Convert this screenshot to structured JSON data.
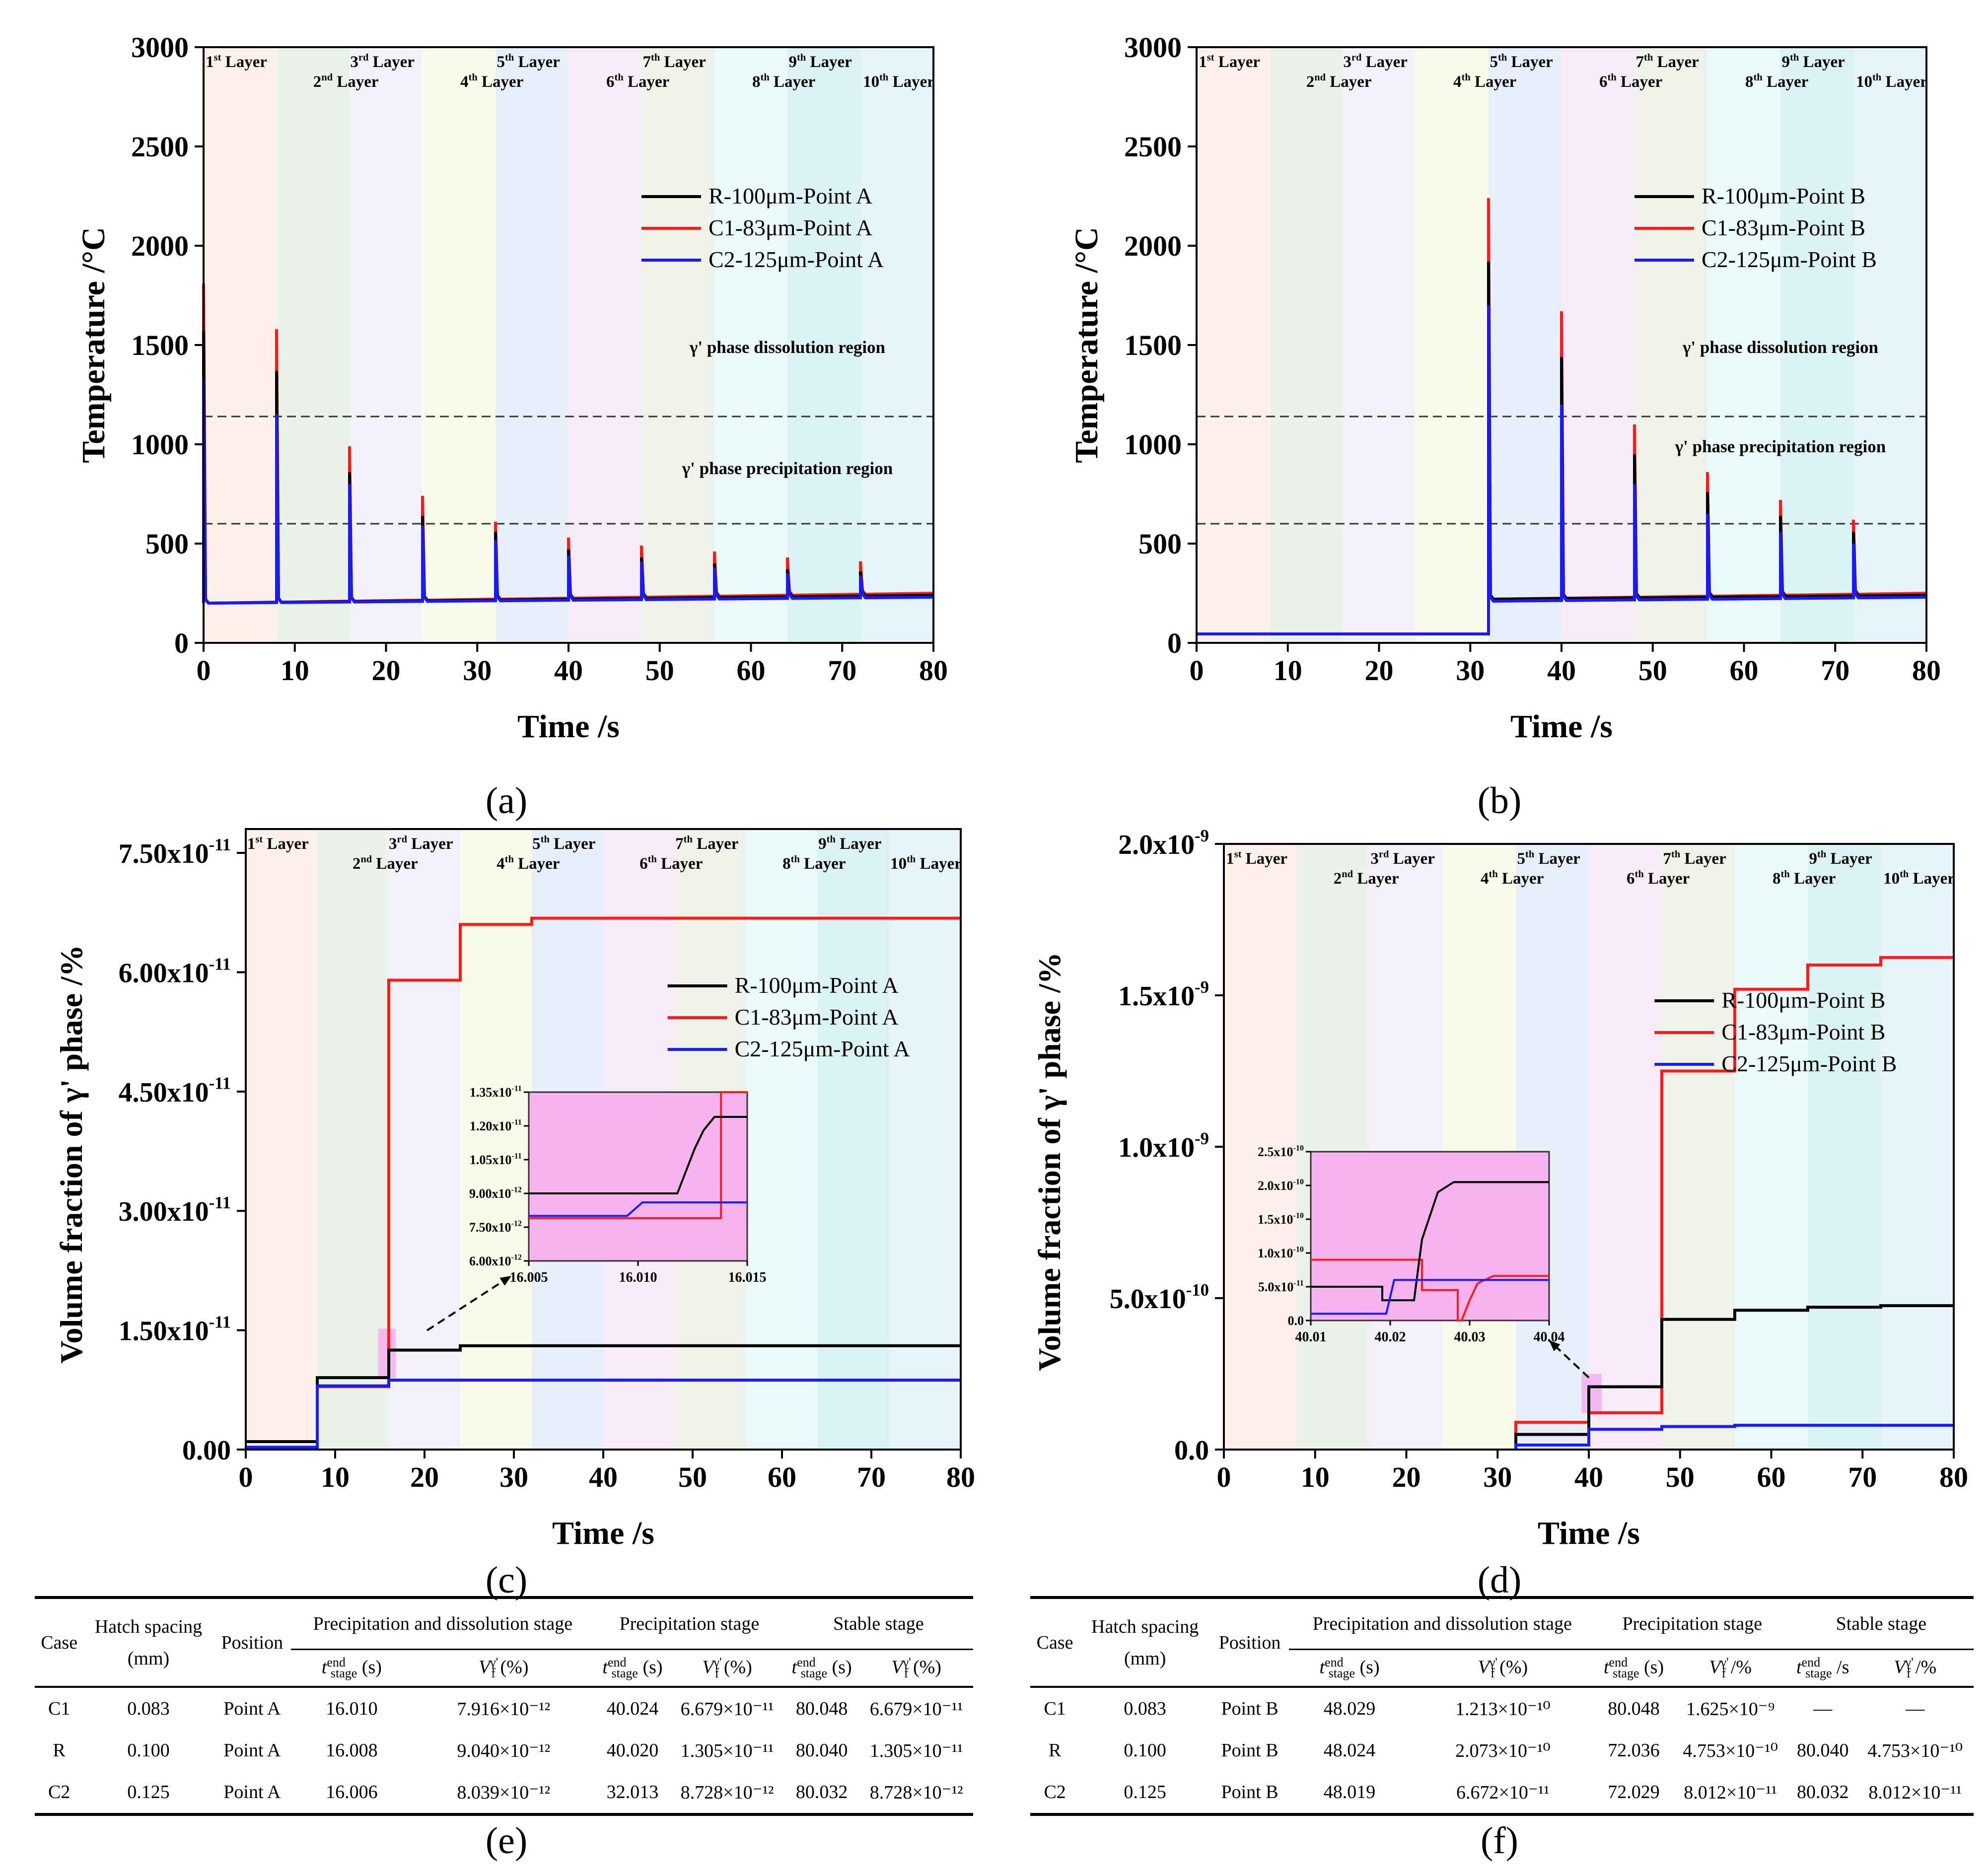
{
  "layers": [
    "1st Layer",
    "2nd Layer",
    "3rd Layer",
    "4th Layer",
    "5th Layer",
    "6th Layer",
    "7th Layer",
    "8th Layer",
    "9th Layer",
    "10th Layer"
  ],
  "layer_colors": [
    "#fdf1ea",
    "#eaf2ea",
    "#f4f1fb",
    "#fbfbea",
    "#e7f0fa",
    "#f8ecf8",
    "#eef2e9",
    "#eafaf9",
    "#dcf3f5",
    "#e6f5fb"
  ],
  "series_colors": {
    "R": "#000000",
    "C1": "#ff1a1a",
    "C2": "#1a1aff"
  },
  "captions": [
    "(a)",
    "(b)",
    "(c)",
    "(d)",
    "(e)",
    "(f)"
  ],
  "chart_data": [
    {
      "id": "a",
      "type": "line",
      "xlabel": "Time /s",
      "ylabel": "Temperature /°C",
      "xlim": [
        0,
        80
      ],
      "ylim": [
        0,
        3000
      ],
      "xticks": [
        "0",
        "10",
        "20",
        "30",
        "40",
        "50",
        "60",
        "70",
        "80"
      ],
      "yticks": [
        "0",
        "500",
        "1000",
        "1500",
        "2000",
        "2500",
        "3000"
      ],
      "legend": [
        "R-100μm-Point A",
        "C1-83μm-Point A",
        "C2-125μm-Point A"
      ],
      "annotations": [
        "γ' phase dissolution region",
        "γ' phase precipitation region"
      ],
      "reference_lines": [
        1140,
        600
      ],
      "peak_times": [
        0,
        8,
        16,
        24,
        32,
        40,
        48,
        56,
        64,
        72
      ],
      "series": [
        {
          "name": "R-100μm-Point A",
          "peaks": [
            1570,
            1370,
            860,
            640,
            560,
            470,
            430,
            400,
            370,
            360
          ],
          "baseline": [
            200,
            240
          ]
        },
        {
          "name": "C1-83μm-Point A",
          "peaks": [
            1810,
            1580,
            990,
            740,
            610,
            530,
            490,
            460,
            430,
            410
          ],
          "baseline": [
            200,
            250
          ]
        },
        {
          "name": "C2-125μm-Point A",
          "peaks": [
            1330,
            1150,
            800,
            590,
            520,
            440,
            410,
            380,
            350,
            340
          ],
          "baseline": [
            200,
            230
          ]
        }
      ]
    },
    {
      "id": "b",
      "type": "line",
      "xlabel": "Time /s",
      "ylabel": "Temperature /°C",
      "xlim": [
        0,
        80
      ],
      "ylim": [
        0,
        3000
      ],
      "xticks": [
        "0",
        "10",
        "20",
        "30",
        "40",
        "50",
        "60",
        "70",
        "80"
      ],
      "yticks": [
        "0",
        "500",
        "1000",
        "1500",
        "2000",
        "2500",
        "3000"
      ],
      "legend": [
        "R-100μm-Point B",
        "C1-83μm-Point B",
        "C2-125μm-Point B"
      ],
      "annotations": [
        "γ' phase dissolution region",
        "γ' phase precipitation region"
      ],
      "reference_lines": [
        1140,
        600
      ],
      "initial_temperature": 45,
      "peak_times": [
        32,
        40,
        48,
        56,
        64,
        72
      ],
      "series": [
        {
          "name": "R-100μm-Point B",
          "peaks": [
            1920,
            1440,
            950,
            760,
            640,
            560
          ],
          "baseline": [
            220,
            240
          ]
        },
        {
          "name": "C1-83μm-Point B",
          "peaks": [
            2240,
            1670,
            1100,
            860,
            720,
            620
          ],
          "baseline": [
            220,
            250
          ]
        },
        {
          "name": "C2-125μm-Point B",
          "peaks": [
            1700,
            1200,
            800,
            650,
            560,
            500
          ],
          "baseline": [
            210,
            230
          ]
        }
      ]
    },
    {
      "id": "c",
      "type": "line",
      "xlabel": "Time /s",
      "ylabel": "Volume fraction of  γ' phase /%",
      "xlim": [
        0,
        80
      ],
      "ylim": [
        0,
        7.8e-11
      ],
      "xticks": [
        "0",
        "10",
        "20",
        "30",
        "40",
        "50",
        "60",
        "70",
        "80"
      ],
      "yticks": [
        "0.00",
        "1.50x10-11",
        "3.00x10-11",
        "4.50x10-11",
        "6.00x10-11",
        "7.50x10-11"
      ],
      "legend": [
        "R-100μm-Point A",
        "C1-83μm-Point A",
        "C2-125μm-Point A"
      ],
      "series": [
        {
          "name": "R-100μm-Point A",
          "x": [
            0,
            8,
            8,
            16,
            16,
            24,
            24,
            80
          ],
          "y": [
            1e-12,
            1e-12,
            9.04e-12,
            9.04e-12,
            1.25e-11,
            1.25e-11,
            1.305e-11,
            1.305e-11
          ]
        },
        {
          "name": "C1-83μm-Point A",
          "x": [
            0,
            8,
            8,
            16,
            16,
            24,
            24,
            32,
            32,
            80
          ],
          "y": [
            2e-13,
            2e-13,
            7.9e-12,
            7.9e-12,
            5.9e-11,
            5.9e-11,
            6.6e-11,
            6.6e-11,
            6.679e-11,
            6.679e-11
          ]
        },
        {
          "name": "C2-125μm-Point A",
          "x": [
            0,
            8,
            8,
            16,
            16,
            80
          ],
          "y": [
            3e-13,
            3e-13,
            8e-12,
            8e-12,
            8.728e-12,
            8.728e-12
          ]
        }
      ],
      "inset": {
        "xlim": [
          16.005,
          16.015
        ],
        "ylim": [
          6e-12,
          1.35e-11
        ],
        "xticks": [
          "16.005",
          "16.010",
          "16.015"
        ],
        "yticks": [
          "6.00x10-12",
          "7.50x10-12",
          "9.00x10-12",
          "1.05x10-11",
          "1.20x10-11",
          "1.35x10-11"
        ],
        "series": [
          {
            "name": "R",
            "x": [
              16.005,
              16.0118,
              16.0122,
              16.0126,
              16.013,
              16.0135,
              16.015
            ],
            "y": [
              9e-12,
              9e-12,
              1e-11,
              1.1e-11,
              1.18e-11,
              1.24e-11,
              1.24e-11
            ]
          },
          {
            "name": "C1",
            "x": [
              16.005,
              16.0138,
              16.0138,
              16.015
            ],
            "y": [
              7.9e-12,
              7.9e-12,
              1.35e-11,
              1.35e-11
            ]
          },
          {
            "name": "C2",
            "x": [
              16.005,
              16.0095,
              16.0102,
              16.015
            ],
            "y": [
              8e-12,
              8e-12,
              8.6e-12,
              8.6e-12
            ]
          }
        ]
      }
    },
    {
      "id": "d",
      "type": "line",
      "xlabel": "Time /s",
      "ylabel": "Volume fraction of  γ' phase /%",
      "xlim": [
        0,
        80
      ],
      "ylim": [
        0,
        2e-09
      ],
      "xticks": [
        "0",
        "10",
        "20",
        "30",
        "40",
        "50",
        "60",
        "70",
        "80"
      ],
      "yticks": [
        "0.0",
        "5.0x10-10",
        "1.0x10-9",
        "1.5x10-9",
        "2.0x10-9"
      ],
      "legend": [
        "R-100μm-Point B",
        "C1-83μm-Point B",
        "C2-125μm-Point B"
      ],
      "series": [
        {
          "name": "R-100μm-Point B",
          "x": [
            32,
            32,
            40,
            40,
            48,
            48,
            56,
            56,
            64,
            64,
            72,
            72,
            80
          ],
          "y": [
            0,
            5e-11,
            5e-11,
            2.073e-10,
            2.073e-10,
            4.3e-10,
            4.3e-10,
            4.6e-10,
            4.6e-10,
            4.7e-10,
            4.7e-10,
            4.753e-10,
            4.753e-10
          ]
        },
        {
          "name": "C1-83μm-Point B",
          "x": [
            32,
            32,
            40,
            40,
            48,
            48,
            56,
            56,
            64,
            64,
            72,
            72,
            80
          ],
          "y": [
            0,
            9e-11,
            9e-11,
            1.213e-10,
            1.213e-10,
            1.25e-09,
            1.25e-09,
            1.52e-09,
            1.52e-09,
            1.6e-09,
            1.6e-09,
            1.625e-09,
            1.625e-09
          ]
        },
        {
          "name": "C2-125μm-Point B",
          "x": [
            32,
            32,
            40,
            40,
            48,
            48,
            56,
            56,
            80
          ],
          "y": [
            0,
            1.5e-11,
            1.5e-11,
            6.672e-11,
            6.672e-11,
            7.6e-11,
            7.6e-11,
            8.012e-11,
            8.012e-11
          ]
        }
      ],
      "inset": {
        "xlim": [
          40.01,
          40.04
        ],
        "ylim": [
          0,
          2.5e-10
        ],
        "xticks": [
          "40.01",
          "40.02",
          "40.03",
          "40.04"
        ],
        "yticks": [
          "0.0",
          "5.0x10-11",
          "1.0x10-10",
          "1.5x10-10",
          "2.0x10-10",
          "2.5x10-10"
        ],
        "series": [
          {
            "name": "R",
            "x": [
              40.01,
              40.019,
              40.019,
              40.023,
              40.024,
              40.026,
              40.028,
              40.04
            ],
            "y": [
              5e-11,
              5e-11,
              3e-11,
              3e-11,
              1.2e-10,
              1.9e-10,
              2.05e-10,
              2.05e-10
            ]
          },
          {
            "name": "C1",
            "x": [
              40.01,
              40.024,
              40.024,
              40.0285,
              40.0285,
              40.029,
              40.03,
              40.031,
              40.033,
              40.04
            ],
            "y": [
              9e-11,
              9e-11,
              4.5e-11,
              4.5e-11,
              0,
              0,
              3e-11,
              5.5e-11,
              6.6e-11,
              6.6e-11
            ]
          },
          {
            "name": "C2",
            "x": [
              40.01,
              40.0195,
              40.0205,
              40.04
            ],
            "y": [
              1e-11,
              1e-11,
              6e-11,
              6e-11
            ]
          }
        ]
      }
    }
  ],
  "tables": [
    {
      "id": "e",
      "group_headers": [
        "Precipitation and dissolution stage",
        "Precipitation stage",
        "Stable stage"
      ],
      "col_case": "Case",
      "col_hatch": "Hatch spacing",
      "col_hatch_unit": "(mm)",
      "col_position": "Position",
      "t_label": "t",
      "t_sup": "end",
      "t_sub": "stage",
      "t_units": [
        "(s)",
        "(s)",
        "(s)"
      ],
      "v_label": "V",
      "v_sup": "γ'",
      "v_sub": "f",
      "v_units": [
        "(%)",
        "(%)",
        "(%)"
      ],
      "rows": [
        [
          "C1",
          "0.083",
          "Point A",
          "16.010",
          "7.916×10⁻¹²",
          "40.024",
          "6.679×10⁻¹¹",
          "80.048",
          "6.679×10⁻¹¹"
        ],
        [
          "R",
          "0.100",
          "Point A",
          "16.008",
          "9.040×10⁻¹²",
          "40.020",
          "1.305×10⁻¹¹",
          "80.040",
          "1.305×10⁻¹¹"
        ],
        [
          "C2",
          "0.125",
          "Point A",
          "16.006",
          "8.039×10⁻¹²",
          "32.013",
          "8.728×10⁻¹²",
          "80.032",
          "8.728×10⁻¹²"
        ]
      ]
    },
    {
      "id": "f",
      "group_headers": [
        "Precipitation and dissolution stage",
        "Precipitation stage",
        "Stable stage"
      ],
      "col_case": "Case",
      "col_hatch": "Hatch spacing",
      "col_hatch_unit": "(mm)",
      "col_position": "Position",
      "t_label": "t",
      "t_sup": "end",
      "t_sub": "stage",
      "t_units": [
        "(s)",
        "(s)",
        "/s"
      ],
      "v_label": "V",
      "v_sup": "γ'",
      "v_sub": "f",
      "v_units": [
        "(%)",
        "/%",
        "/%"
      ],
      "rows": [
        [
          "C1",
          "0.083",
          "Point B",
          "48.029",
          "1.213×10⁻¹⁰",
          "80.048",
          "1.625×10⁻⁹",
          "—",
          "—"
        ],
        [
          "R",
          "0.100",
          "Point B",
          "48.024",
          "2.073×10⁻¹⁰",
          "72.036",
          "4.753×10⁻¹⁰",
          "80.040",
          "4.753×10⁻¹⁰"
        ],
        [
          "C2",
          "0.125",
          "Point B",
          "48.019",
          "6.672×10⁻¹¹",
          "72.029",
          "8.012×10⁻¹¹",
          "80.032",
          "8.012×10⁻¹¹"
        ]
      ]
    }
  ]
}
